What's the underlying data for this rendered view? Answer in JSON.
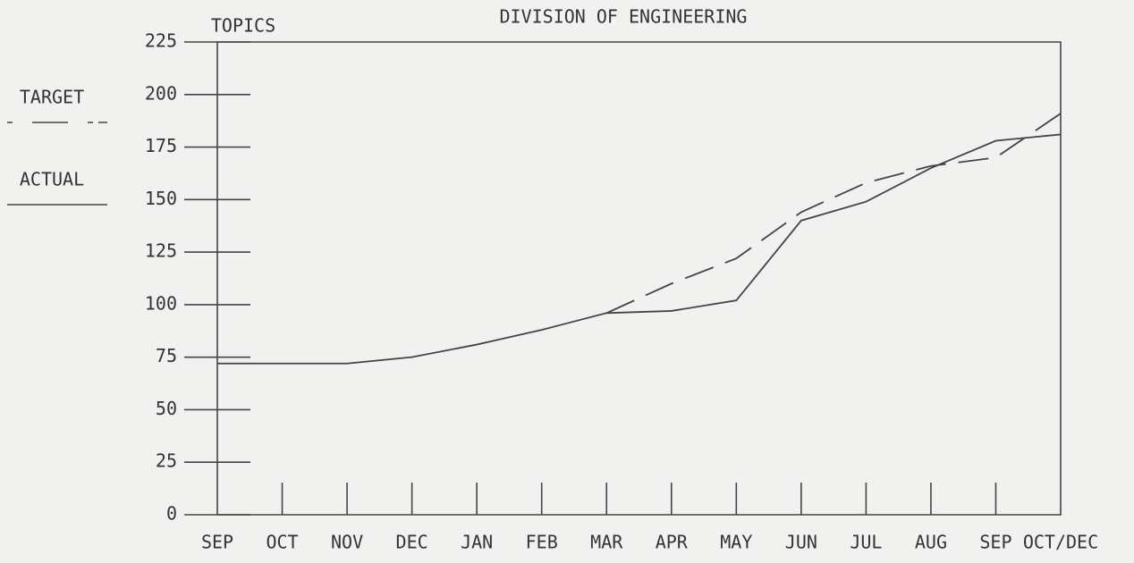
{
  "chart_data": {
    "type": "line",
    "title": "DIVISION OF ENGINEERING",
    "y_label": "TOPICS",
    "categories": [
      "SEP",
      "OCT",
      "NOV",
      "DEC",
      "JAN",
      "FEB",
      "MAR",
      "APR",
      "MAY",
      "JUN",
      "JUL",
      "AUG",
      "SEP",
      "OCT/DEC"
    ],
    "series": [
      {
        "name": "TARGET",
        "color": "#444444",
        "dashed": true,
        "values": [
          null,
          null,
          null,
          null,
          null,
          null,
          96,
          110,
          122,
          144,
          158,
          166,
          170,
          191
        ]
      },
      {
        "name": "ACTUAL",
        "color": "#444444",
        "dashed": false,
        "values": [
          72,
          72,
          72,
          75,
          81,
          88,
          96,
          97,
          102,
          140,
          149,
          165,
          178,
          181
        ]
      }
    ],
    "ylim": [
      0,
      225
    ],
    "yticks": [
      0,
      25,
      50,
      75,
      100,
      125,
      150,
      175,
      200,
      225
    ]
  }
}
